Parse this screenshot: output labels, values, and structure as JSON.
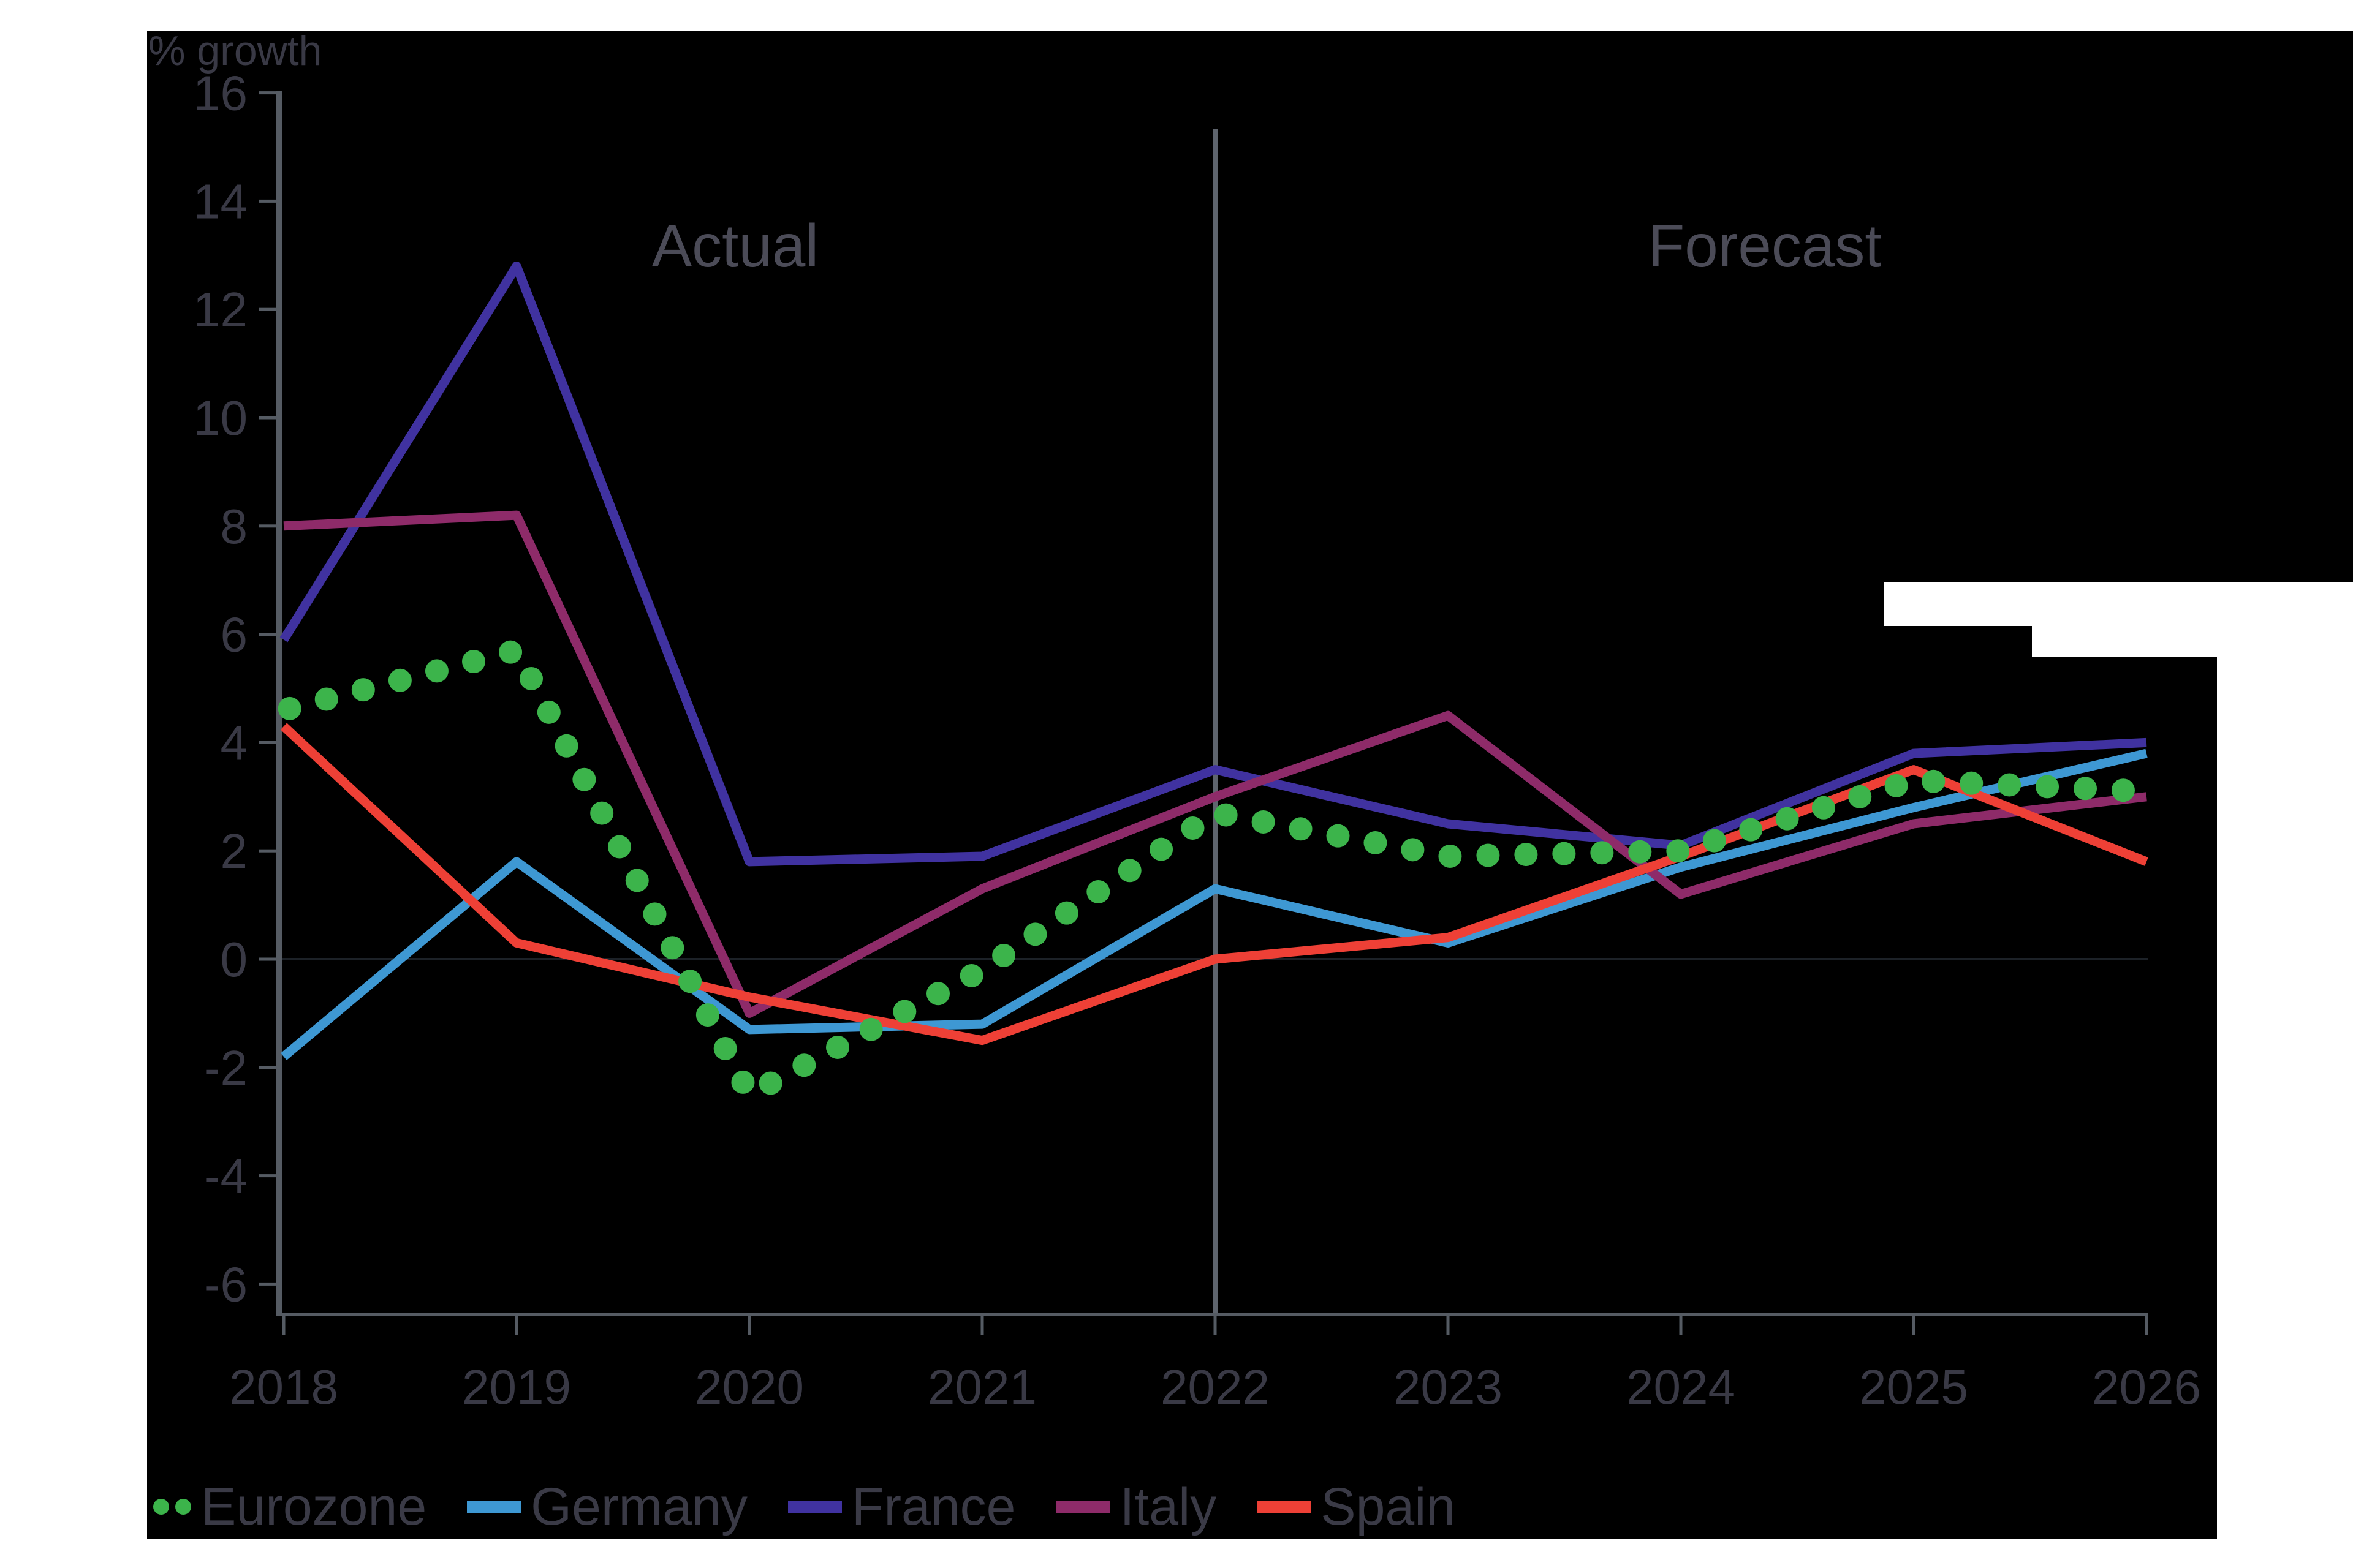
{
  "colors": {
    "background": "#000000",
    "page": "#ffffff",
    "axis": "#555b63",
    "divider": "#5e646d",
    "zero_line": "#1c2127",
    "tick_text": "#393945",
    "region_text": "#4b4b57",
    "legend_text": "#3a3a46"
  },
  "chart_data": {
    "type": "line",
    "title": "",
    "xlabel": "",
    "ylabel": "% growth",
    "x": [
      2018,
      2019,
      2020,
      2021,
      2022,
      2023,
      2024,
      2025,
      2026
    ],
    "ylim": [
      -6,
      16
    ],
    "ytick_step": 2,
    "grid": false,
    "zero_line": true,
    "divider_x": 2022,
    "legend_position": "bottom-left",
    "annotations": [
      {
        "text": "Actual",
        "region": "left"
      },
      {
        "text": "Forecast",
        "region": "right"
      }
    ],
    "series": [
      {
        "name": "Eurozone",
        "style": "dotted",
        "color": "#3cb44b",
        "values": [
          4.6,
          5.7,
          -2.5,
          -0.2,
          2.7,
          1.9,
          2.0,
          3.3,
          3.1
        ]
      },
      {
        "name": "Germany",
        "style": "solid",
        "color": "#3e98d3",
        "values": [
          -1.8,
          1.8,
          -1.3,
          -1.2,
          1.3,
          0.3,
          1.7,
          2.8,
          3.8
        ]
      },
      {
        "name": "France",
        "style": "solid",
        "color": "#4032a0",
        "values": [
          5.9,
          12.8,
          1.8,
          1.9,
          3.5,
          2.5,
          2.1,
          3.8,
          4.0
        ]
      },
      {
        "name": "Italy",
        "style": "solid",
        "color": "#8e2b69",
        "values": [
          8.0,
          8.2,
          -1.0,
          1.3,
          3.0,
          4.5,
          1.2,
          2.5,
          3.0
        ]
      },
      {
        "name": "Spain",
        "style": "solid",
        "color": "#ee4036",
        "values": [
          4.3,
          0.3,
          -0.7,
          -1.5,
          0.0,
          0.4,
          1.9,
          3.5,
          1.8
        ]
      }
    ]
  }
}
